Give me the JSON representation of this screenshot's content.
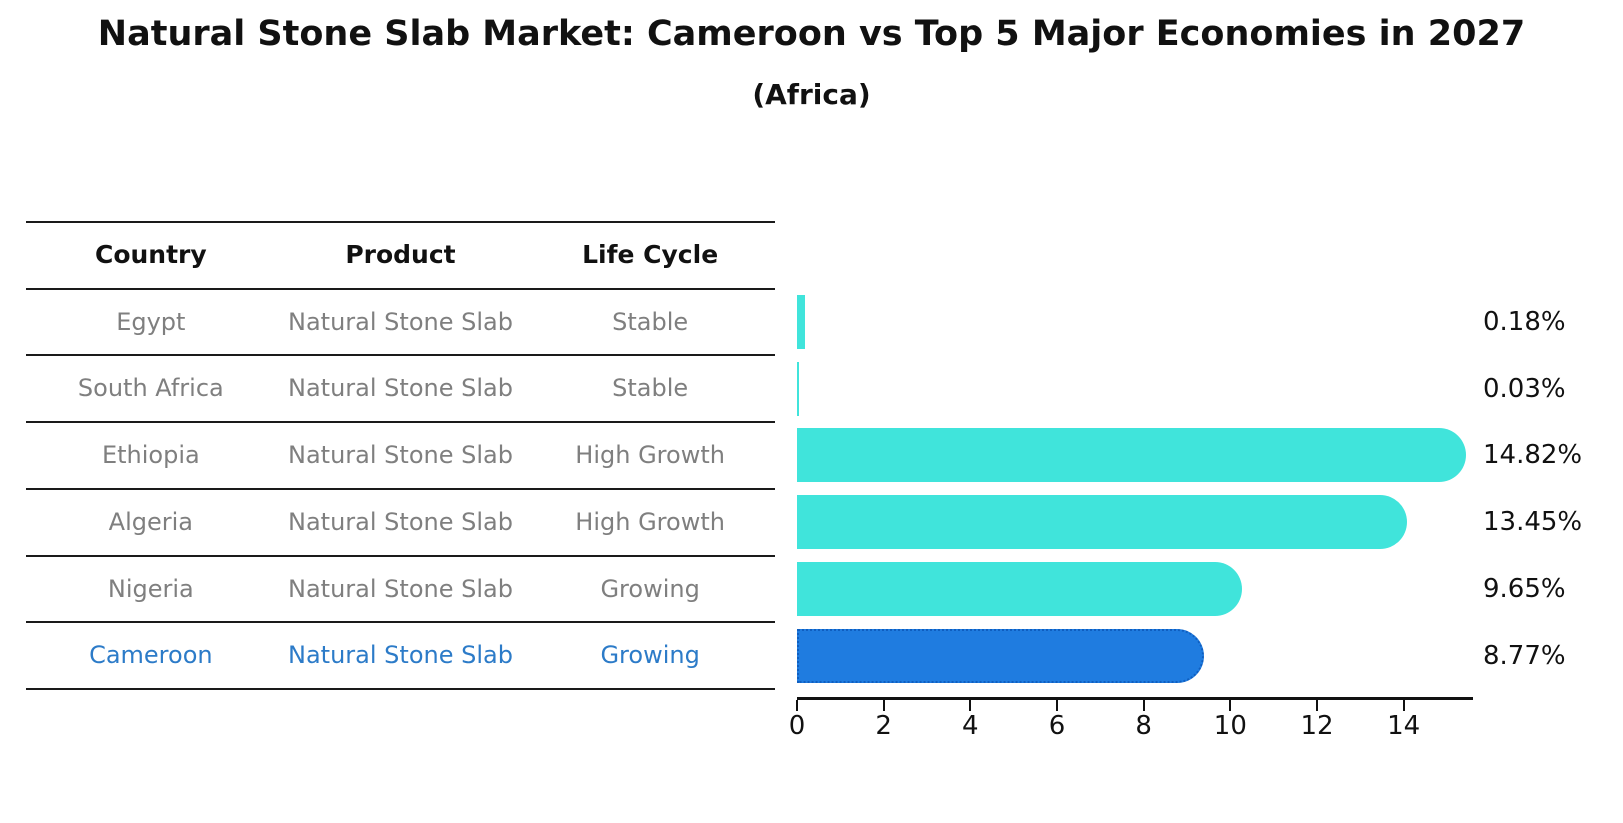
{
  "title": "Natural Stone Slab Market: Cameroon vs Top 5 Major Economies in 2027",
  "subtitle": "(Africa)",
  "table": {
    "headers": [
      "Country",
      "Product",
      "Life Cycle"
    ],
    "rows": [
      {
        "country": "Egypt",
        "product": "Natural Stone Slab",
        "life_cycle": "Stable",
        "highlight": false
      },
      {
        "country": "South Africa",
        "product": "Natural Stone Slab",
        "life_cycle": "Stable",
        "highlight": false
      },
      {
        "country": "Ethiopia",
        "product": "Natural Stone Slab",
        "life_cycle": "High Growth",
        "highlight": false
      },
      {
        "country": "Algeria",
        "product": "Natural Stone Slab",
        "life_cycle": "High Growth",
        "highlight": false
      },
      {
        "country": "Nigeria",
        "product": "Natural Stone Slab",
        "life_cycle": "Growing",
        "highlight": false
      },
      {
        "country": "Cameroon",
        "product": "Natural Stone Slab",
        "life_cycle": "Growing",
        "highlight": true
      }
    ]
  },
  "chart_data": {
    "type": "bar",
    "orientation": "horizontal",
    "title": "Natural Stone Slab Market: Cameroon vs Top 5 Major Economies in 2027",
    "subtitle": "(Africa)",
    "categories": [
      "Egypt",
      "South Africa",
      "Ethiopia",
      "Algeria",
      "Nigeria",
      "Cameroon"
    ],
    "values": [
      0.18,
      0.03,
      14.82,
      13.45,
      9.65,
      8.77
    ],
    "value_labels": [
      "0.18%",
      "0.03%",
      "14.82%",
      "13.45%",
      "9.65%",
      "8.77%"
    ],
    "units": "%",
    "x_ticks": [
      0,
      2,
      4,
      6,
      8,
      10,
      12,
      14
    ],
    "xlim": [
      0,
      15.6
    ],
    "grid": false,
    "legend": false,
    "highlight_index": 5
  },
  "colors": {
    "bar_default": "#40E4DB",
    "bar_highlight": "#1F7CE0",
    "bar_highlight_border": "#0F5EC0",
    "highlight_text": "#2C7BC8",
    "table_text": "#7F7F7F",
    "heading_text": "#111111"
  }
}
